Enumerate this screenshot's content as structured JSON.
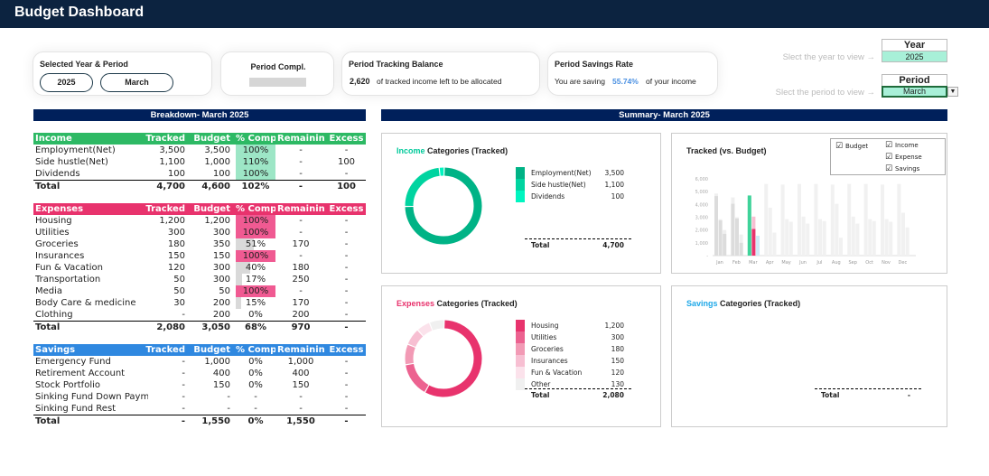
{
  "header": {
    "title": "Budget Dashboard"
  },
  "cards": {
    "period": {
      "title": "Selected Year & Period",
      "year": "2025",
      "month": "March"
    },
    "completion": {
      "title": "Period Compl."
    },
    "balance": {
      "title": "Period Tracking Balance",
      "value": "2,620",
      "text": "of tracked income left to be allocated"
    },
    "savings_rate": {
      "title": "Period Savings Rate",
      "prefix": "You are saving",
      "value": "55.74%",
      "suffix": "of your income"
    }
  },
  "selectors": {
    "year_hint": "Slect the year to view →",
    "year_label": "Year",
    "year_value": "2025",
    "period_hint": "Slect the period to view →",
    "period_label": "Period",
    "period_value": "March"
  },
  "breakdown_title": "Breakdown- March 2025",
  "summary_title": "Summary- March 2025",
  "colors": {
    "income": "#2db964",
    "expenses": "#e8336d",
    "savings": "#2f88e0",
    "navy": "#00205b"
  },
  "tables": [
    {
      "key": "income",
      "headers": [
        "Income",
        "Tracked",
        "Budget",
        "% Compl",
        "Remaining",
        "Excess"
      ],
      "fill": "#9de6c6",
      "rows": [
        [
          "Employment(Net)",
          "3,500",
          "3,500",
          "100%",
          "-",
          "-",
          100
        ],
        [
          "Side hustle(Net)",
          "1,100",
          "1,000",
          "110%",
          "-",
          "100",
          100
        ],
        [
          "Dividends",
          "100",
          "100",
          "100%",
          "-",
          "-",
          100
        ]
      ],
      "total": [
        "Total",
        "4,700",
        "4,600",
        "102%",
        "-",
        "100"
      ]
    },
    {
      "key": "expenses",
      "headers": [
        "Expenses",
        "Tracked",
        "Budget",
        "% Compl",
        "Remaining",
        "Excess"
      ],
      "fill": "#f05a92",
      "rows": [
        [
          "Housing",
          "1,200",
          "1,200",
          "100%",
          "-",
          "-",
          100
        ],
        [
          "Utilities",
          "300",
          "300",
          "100%",
          "-",
          "-",
          100
        ],
        [
          "Groceries",
          "180",
          "350",
          "51%",
          "170",
          "-",
          51
        ],
        [
          "Insurances",
          "150",
          "150",
          "100%",
          "-",
          "-",
          100
        ],
        [
          "Fun & Vacation",
          "120",
          "300",
          "40%",
          "180",
          "-",
          40
        ],
        [
          "Transportation",
          "50",
          "300",
          "17%",
          "250",
          "-",
          17
        ],
        [
          "Media",
          "50",
          "50",
          "100%",
          "-",
          "-",
          100
        ],
        [
          "Body Care & medicine",
          "30",
          "200",
          "15%",
          "170",
          "-",
          15
        ],
        [
          "Clothing",
          "-",
          "200",
          "0%",
          "200",
          "-",
          0
        ]
      ],
      "total": [
        "Total",
        "2,080",
        "3,050",
        "68%",
        "970",
        "-"
      ]
    },
    {
      "key": "savings",
      "headers": [
        "Savings",
        "Tracked",
        "Budget",
        "% Compl",
        "Remaining",
        "Excess"
      ],
      "fill": "#9fc8f0",
      "rows": [
        [
          "Emergency Fund",
          "-",
          "1,000",
          "0%",
          "1,000",
          "-",
          0
        ],
        [
          "Retirement Account",
          "-",
          "400",
          "0%",
          "400",
          "-",
          0
        ],
        [
          "Stock Portfolio",
          "-",
          "150",
          "0%",
          "150",
          "-",
          0
        ],
        [
          "Sinking Fund Down Payment",
          "-",
          "-",
          "-",
          "-",
          "-",
          0
        ],
        [
          "Sinking Fund Rest",
          "-",
          "-",
          "-",
          "-",
          "-",
          0
        ]
      ],
      "total": [
        "Total",
        "-",
        "1,550",
        "0%",
        "1,550",
        "-"
      ]
    }
  ],
  "chart_data": [
    {
      "type": "pie",
      "title_accent": "Income",
      "title": "Categories (Tracked)",
      "labels": [
        "Employment(Net)",
        "Side hustle(Net)",
        "Dividends"
      ],
      "values": [
        3500,
        1100,
        100
      ],
      "display": [
        "3,500",
        "1,100",
        "100"
      ],
      "colors": [
        "#00b386",
        "#00d4a0",
        "#00f5c0"
      ],
      "total_label": "Total",
      "total": "4,700"
    },
    {
      "type": "pie",
      "title_accent": "Expenses",
      "title": "Categories (Tracked)",
      "labels": [
        "Housing",
        "Utilities",
        "Groceries",
        "Insurances",
        "Fun & Vacation",
        "Other"
      ],
      "values": [
        1200,
        300,
        180,
        150,
        120,
        130
      ],
      "display": [
        "1,200",
        "300",
        "180",
        "150",
        "120",
        "130"
      ],
      "colors": [
        "#e8336d",
        "#ec6290",
        "#f29ab5",
        "#f7bfd2",
        "#fbe2eb",
        "#f0f0f0"
      ],
      "total_label": "Total",
      "total": "2,080"
    },
    {
      "type": "pie",
      "title_accent": "Savings",
      "title": "Categories (Tracked)",
      "labels": [],
      "values": [],
      "total_label": "Total",
      "total": "-"
    },
    {
      "type": "bar",
      "title": "Tracked (vs. Budget)",
      "ylim": [
        0,
        6000
      ],
      "yticks": [
        "-",
        "1,000",
        "2,000",
        "3,000",
        "4,000",
        "5,000",
        "6,000"
      ],
      "categories": [
        "Jan",
        "Feb",
        "Mar",
        "Apr",
        "May",
        "Jun",
        "Jul",
        "Aug",
        "Sep",
        "Oct",
        "Nov",
        "Dec"
      ],
      "legend": [
        "Budget",
        "Income",
        "Expense",
        "Savings"
      ],
      "series": [
        {
          "name": "Income",
          "budget": [
            4850,
            4550,
            4600,
            5600,
            5550,
            5600,
            5600,
            5550,
            5600,
            5600,
            5550,
            5600
          ],
          "tracked": [
            4650,
            4050,
            4700,
            0,
            0,
            0,
            0,
            0,
            0,
            0,
            0,
            0
          ]
        },
        {
          "name": "Expense",
          "budget": [
            2850,
            3000,
            3050,
            3750,
            2850,
            3050,
            2850,
            4050,
            3050,
            2850,
            2850,
            3350
          ],
          "tracked": [
            2750,
            2900,
            2080,
            0,
            0,
            0,
            0,
            0,
            0,
            0,
            0,
            0
          ]
        },
        {
          "name": "Savings",
          "budget": [
            2000,
            1650,
            1550,
            1800,
            2650,
            2500,
            2700,
            1400,
            2500,
            2700,
            2650,
            2200
          ],
          "tracked": [
            1700,
            1000,
            0,
            0,
            0,
            0,
            0,
            0,
            0,
            0,
            0,
            0
          ]
        }
      ]
    }
  ]
}
